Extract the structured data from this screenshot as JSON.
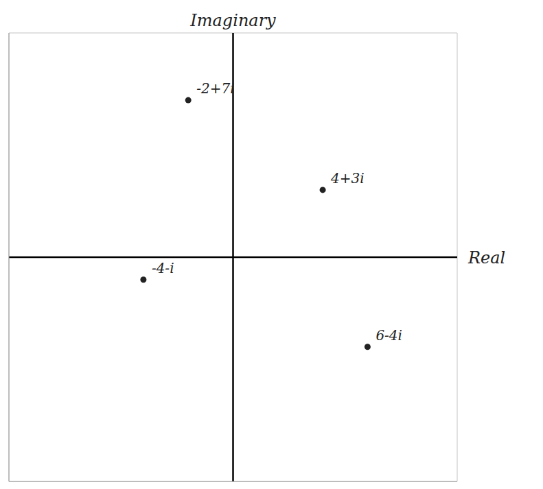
{
  "chart_data": {
    "type": "scatter",
    "x_label": "Real",
    "y_label": "Imaginary",
    "points": [
      {
        "x": -2,
        "y": 7,
        "label": "-2+7i"
      },
      {
        "x": 4,
        "y": 3,
        "label": "4+3i"
      },
      {
        "x": -4,
        "y": -1,
        "label": "-4-i"
      },
      {
        "x": 6,
        "y": -4,
        "label": "6-4i"
      }
    ],
    "color": "#222222",
    "xlim": [
      -10,
      10
    ],
    "ylim": [
      -10,
      10
    ],
    "xticks": [
      -10,
      -9,
      -8,
      -7,
      -6,
      -5,
      -4,
      -3,
      -2,
      -1,
      0,
      1,
      2,
      3,
      4,
      5,
      6,
      7,
      8,
      9,
      10
    ],
    "yticks": [
      -10,
      -9,
      -8,
      -7,
      -6,
      -5,
      -4,
      -3,
      -2,
      -1,
      0,
      1,
      2,
      3,
      4,
      5,
      6,
      7,
      8,
      9,
      10
    ],
    "grid": true,
    "tick_labels": false
  }
}
